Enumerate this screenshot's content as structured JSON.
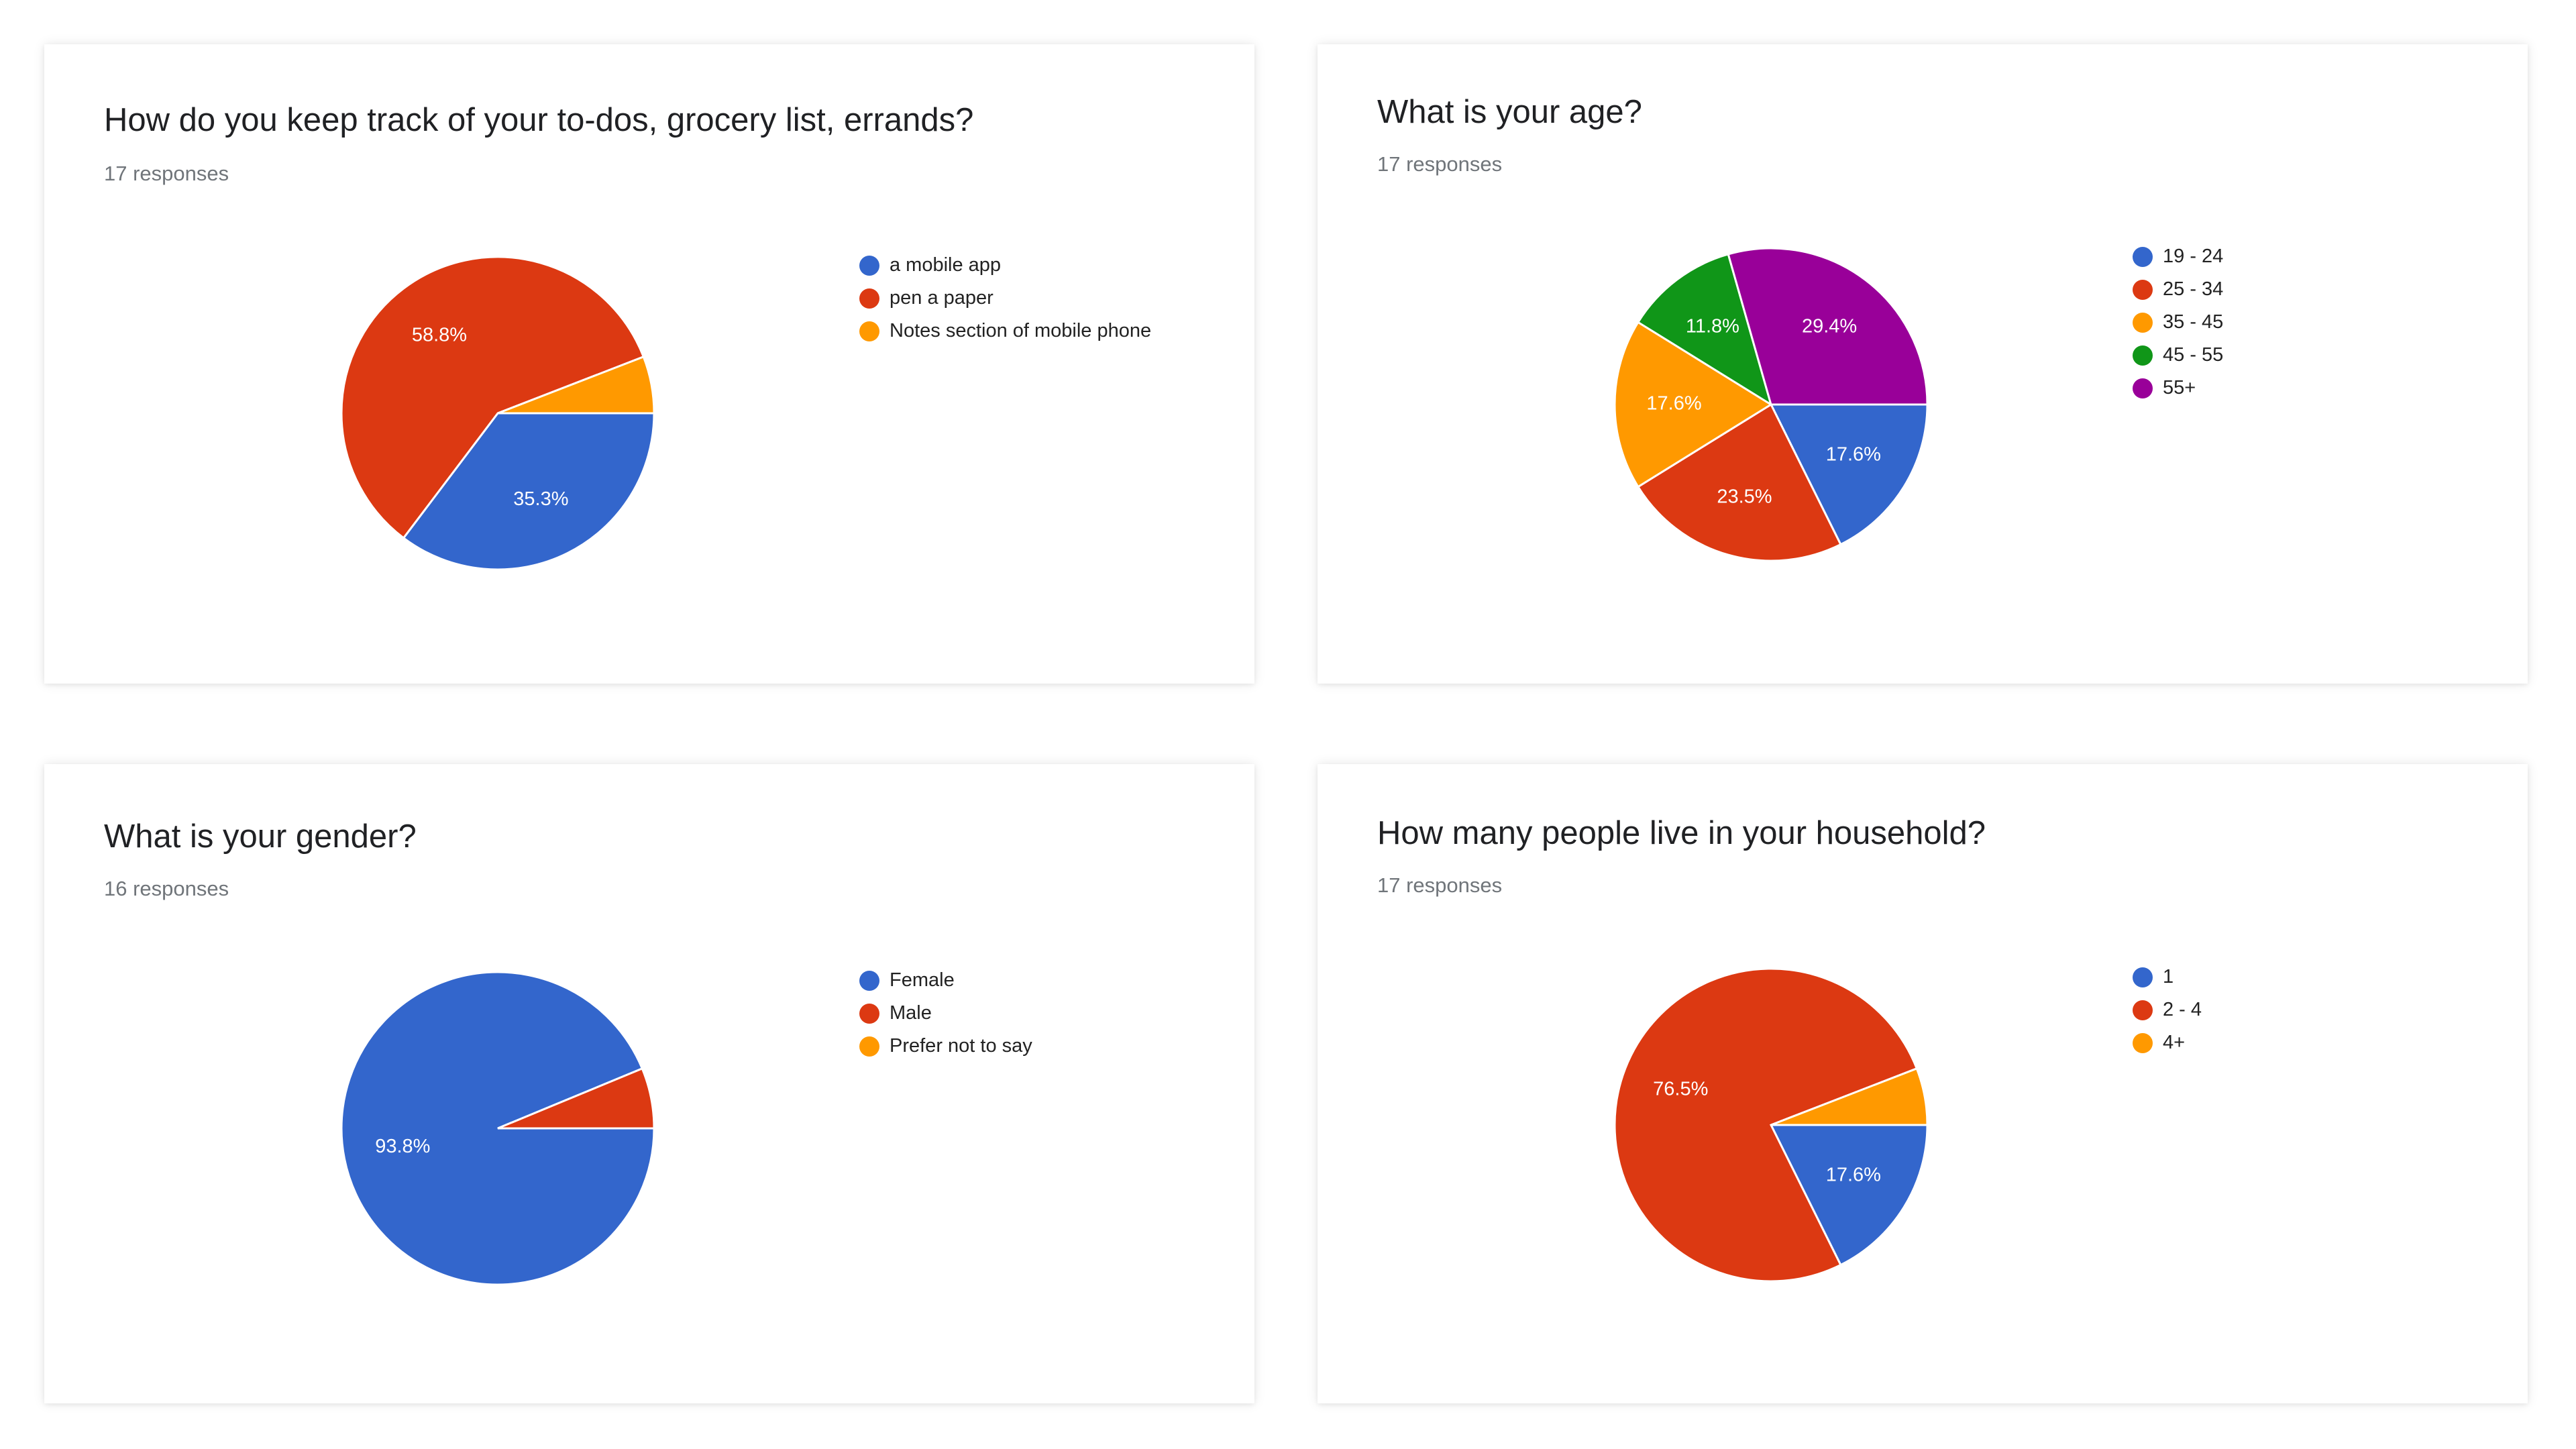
{
  "colors": [
    "#3366cc",
    "#dc3912",
    "#ff9900",
    "#109618",
    "#990099"
  ],
  "chart_data": [
    {
      "type": "pie",
      "title": "How do you keep track of your to-dos, grocery list, errands?",
      "subtitle": "17 responses",
      "categories": [
        "a mobile app",
        "pen a paper",
        "Notes section of mobile phone"
      ],
      "values": [
        6,
        10,
        1
      ],
      "slice_labels": [
        "35.3%",
        "58.8%",
        ""
      ]
    },
    {
      "type": "pie",
      "title": "What is your age?",
      "subtitle": "17 responses",
      "categories": [
        "19 - 24",
        "25 - 34",
        "35 - 45",
        "45 - 55",
        "55+"
      ],
      "values": [
        3,
        4,
        3,
        2,
        5
      ],
      "slice_labels": [
        "17.6%",
        "23.5%",
        "17.6%",
        "11.8%",
        "29.4%"
      ]
    },
    {
      "type": "pie",
      "title": "What is your gender?",
      "subtitle": "16 responses",
      "categories": [
        "Female",
        "Male",
        "Prefer not to say"
      ],
      "values": [
        15,
        1,
        0
      ],
      "slice_labels": [
        "93.8%",
        "",
        ""
      ]
    },
    {
      "type": "pie",
      "title": "How many people live in your household?",
      "subtitle": "17 responses",
      "categories": [
        "1",
        "2 - 4",
        "4+"
      ],
      "values": [
        3,
        13,
        1
      ],
      "slice_labels": [
        "17.6%",
        "76.5%",
        ""
      ]
    }
  ]
}
